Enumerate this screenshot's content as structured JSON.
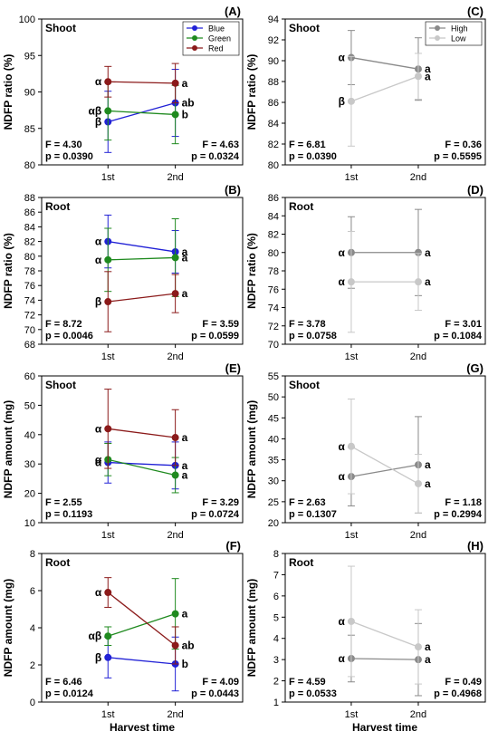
{
  "figure": {
    "xlabel_left": "Harvest time",
    "xlabel_right": "Harvest time"
  },
  "chart_data": [
    {
      "id": "A",
      "panel_label": "(A)",
      "type": "line",
      "tissue": "Shoot",
      "ylabel": "NDFP ratio (%)",
      "ylim": [
        80,
        100
      ],
      "yticks": [
        80,
        85,
        90,
        95,
        100
      ],
      "x": [
        "1st",
        "2nd"
      ],
      "legend": "top-right",
      "series": [
        {
          "name": "Blue",
          "color": "#2121d6",
          "values": [
            85.9,
            88.5
          ],
          "err": [
            4.2,
            4.6
          ],
          "sig": [
            "β",
            "ab"
          ]
        },
        {
          "name": "Green",
          "color": "#1f8a1f",
          "values": [
            87.4,
            86.9
          ],
          "err": [
            4.0,
            4.0
          ],
          "sig": [
            "αβ",
            "b"
          ]
        },
        {
          "name": "Red",
          "color": "#8b1a1a",
          "values": [
            91.4,
            91.2
          ],
          "err": [
            2.1,
            2.7
          ],
          "sig": [
            "α",
            "a"
          ]
        }
      ],
      "stats_left": {
        "F": "F = 4.30",
        "p": "p = 0.0390"
      },
      "stats_right": {
        "F": "F = 4.63",
        "p": "p = 0.0324"
      }
    },
    {
      "id": "B",
      "panel_label": "(B)",
      "type": "line",
      "tissue": "Root",
      "ylabel": "NDFP ratio (%)",
      "ylim": [
        68,
        88
      ],
      "yticks": [
        68,
        70,
        72,
        74,
        76,
        78,
        80,
        82,
        84,
        86,
        88
      ],
      "x": [
        "1st",
        "2nd"
      ],
      "series": [
        {
          "name": "Blue",
          "color": "#2121d6",
          "values": [
            82.0,
            80.6
          ],
          "err": [
            3.6,
            2.9
          ],
          "sig": [
            "α",
            "a"
          ]
        },
        {
          "name": "Green",
          "color": "#1f8a1f",
          "values": [
            79.5,
            79.8
          ],
          "err": [
            4.3,
            5.3
          ],
          "sig": [
            "α",
            "a"
          ]
        },
        {
          "name": "Red",
          "color": "#8b1a1a",
          "values": [
            73.8,
            74.9
          ],
          "err": [
            4.1,
            2.6
          ],
          "sig": [
            "β",
            "a"
          ]
        }
      ],
      "stats_left": {
        "F": "F = 8.72",
        "p": "p = 0.0046"
      },
      "stats_right": {
        "F": "F = 3.59",
        "p": "p = 0.0599"
      }
    },
    {
      "id": "E",
      "panel_label": "(E)",
      "type": "line",
      "tissue": "Shoot",
      "ylabel": "NDFP amount (mg)",
      "ylim": [
        10,
        60
      ],
      "yticks": [
        10,
        20,
        30,
        40,
        50,
        60
      ],
      "x": [
        "1st",
        "2nd"
      ],
      "series": [
        {
          "name": "Blue",
          "color": "#2121d6",
          "values": [
            30.5,
            29.5
          ],
          "err": [
            7.0,
            8.0
          ],
          "sig": [
            "α",
            "a"
          ]
        },
        {
          "name": "Green",
          "color": "#1f8a1f",
          "values": [
            31.5,
            26.2
          ],
          "err": [
            5.5,
            6.0
          ],
          "sig": [
            "α",
            "a"
          ]
        },
        {
          "name": "Red",
          "color": "#8b1a1a",
          "values": [
            42.0,
            39.0
          ],
          "err": [
            13.5,
            9.5
          ],
          "sig": [
            "α",
            "a"
          ]
        }
      ],
      "stats_left": {
        "F": "F = 2.55",
        "p": "p = 0.1193"
      },
      "stats_right": {
        "F": "F = 3.29",
        "p": "p = 0.0724"
      }
    },
    {
      "id": "F",
      "panel_label": "(F)",
      "type": "line",
      "tissue": "Root",
      "ylabel": "NDFP amount (mg)",
      "ylim": [
        0,
        8
      ],
      "yticks": [
        0,
        2,
        4,
        6,
        8
      ],
      "x": [
        "1st",
        "2nd"
      ],
      "series": [
        {
          "name": "Blue",
          "color": "#2121d6",
          "values": [
            2.4,
            2.05
          ],
          "err": [
            1.1,
            1.45
          ],
          "sig": [
            "β",
            "b"
          ]
        },
        {
          "name": "Green",
          "color": "#1f8a1f",
          "values": [
            3.55,
            4.75
          ],
          "err": [
            0.5,
            1.9
          ],
          "sig": [
            "αβ",
            "a"
          ]
        },
        {
          "name": "Red",
          "color": "#8b1a1a",
          "values": [
            5.9,
            3.05
          ],
          "err": [
            0.8,
            1.0
          ],
          "sig": [
            "α",
            "ab"
          ]
        }
      ],
      "stats_left": {
        "F": "F = 6.46",
        "p": "p = 0.0124"
      },
      "stats_right": {
        "F": "F = 4.09",
        "p": "p = 0.0443"
      }
    },
    {
      "id": "C",
      "panel_label": "(C)",
      "type": "line",
      "tissue": "Shoot",
      "ylabel": "NDFP ratio (%)",
      "ylim": [
        80,
        94
      ],
      "yticks": [
        80,
        82,
        84,
        86,
        88,
        90,
        92,
        94
      ],
      "x": [
        "1st",
        "2nd"
      ],
      "legend": "top-right",
      "series": [
        {
          "name": "High",
          "color": "#8a8a8a",
          "values": [
            90.3,
            89.2
          ],
          "err": [
            2.6,
            3.0
          ],
          "sig": [
            "α",
            "a"
          ]
        },
        {
          "name": "Low",
          "color": "#c8c8c8",
          "values": [
            86.1,
            88.5
          ],
          "err": [
            4.3,
            2.2
          ],
          "sig": [
            "β",
            "a"
          ]
        }
      ],
      "stats_left": {
        "F": "F = 6.81",
        "p": "p = 0.0390"
      },
      "stats_right": {
        "F": "F = 0.36",
        "p": "p = 0.5595"
      }
    },
    {
      "id": "D",
      "panel_label": "(D)",
      "type": "line",
      "tissue": "Root",
      "ylabel": "NDFP ratio (%)",
      "ylim": [
        70,
        86
      ],
      "yticks": [
        70,
        72,
        74,
        76,
        78,
        80,
        82,
        84,
        86
      ],
      "x": [
        "1st",
        "2nd"
      ],
      "series": [
        {
          "name": "High",
          "color": "#8a8a8a",
          "values": [
            80.0,
            80.0
          ],
          "err": [
            3.9,
            4.7
          ],
          "sig": [
            "α",
            "a"
          ]
        },
        {
          "name": "Low",
          "color": "#c8c8c8",
          "values": [
            76.8,
            76.8
          ],
          "err": [
            5.5,
            3.1
          ],
          "sig": [
            "α",
            "a"
          ]
        }
      ],
      "stats_left": {
        "F": "F = 3.78",
        "p": "p = 0.0758"
      },
      "stats_right": {
        "F": "F = 3.01",
        "p": "p = 0.1084"
      }
    },
    {
      "id": "G",
      "panel_label": "(G)",
      "type": "line",
      "tissue": "Shoot",
      "ylabel": "NDFP amount (mg)",
      "ylim": [
        20,
        55
      ],
      "yticks": [
        20,
        25,
        30,
        35,
        40,
        45,
        50,
        55
      ],
      "x": [
        "1st",
        "2nd"
      ],
      "series": [
        {
          "name": "High",
          "color": "#8a8a8a",
          "values": [
            31.0,
            33.8
          ],
          "err": [
            7.0,
            11.5
          ],
          "sig": [
            "α",
            "a"
          ]
        },
        {
          "name": "Low",
          "color": "#c8c8c8",
          "values": [
            38.2,
            29.3
          ],
          "err": [
            11.3,
            7.0
          ],
          "sig": [
            "α",
            "a"
          ]
        }
      ],
      "stats_left": {
        "F": "F = 2.63",
        "p": "p = 0.1307"
      },
      "stats_right": {
        "F": "F = 1.18",
        "p": "p = 0.2994"
      }
    },
    {
      "id": "H",
      "panel_label": "(H)",
      "type": "line",
      "tissue": "Root",
      "ylabel": "NDFP amount (mg)",
      "ylim": [
        1,
        8
      ],
      "yticks": [
        1,
        2,
        3,
        4,
        5,
        6,
        7,
        8
      ],
      "x": [
        "1st",
        "2nd"
      ],
      "series": [
        {
          "name": "High",
          "color": "#8a8a8a",
          "values": [
            3.05,
            3.0
          ],
          "err": [
            1.1,
            1.7
          ],
          "sig": [
            "α",
            "a"
          ]
        },
        {
          "name": "Low",
          "color": "#c8c8c8",
          "values": [
            4.8,
            3.6
          ],
          "err": [
            2.6,
            1.75
          ],
          "sig": [
            "α",
            "a"
          ]
        }
      ],
      "stats_left": {
        "F": "F = 4.59",
        "p": "p = 0.0533"
      },
      "stats_right": {
        "F": "F = 0.49",
        "p": "p = 0.4968"
      }
    }
  ]
}
